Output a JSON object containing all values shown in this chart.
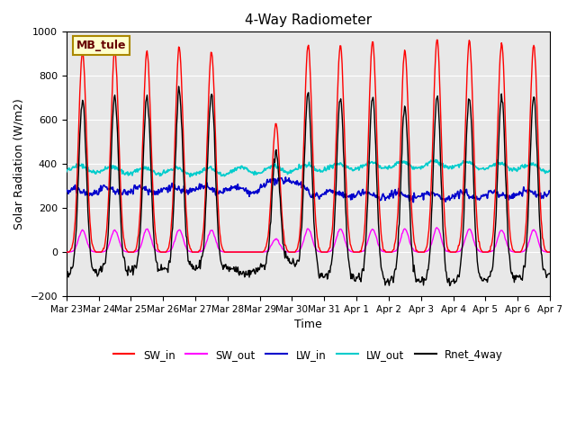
{
  "title": "4-Way Radiometer",
  "ylabel": "Solar Radiation (W/m2)",
  "xlabel": "Time",
  "station_label": "MB_tule",
  "ylim": [
    -200,
    1000
  ],
  "yticks": [
    -200,
    0,
    200,
    400,
    600,
    800,
    1000
  ],
  "x_tick_labels": [
    "Mar 23",
    "Mar 24",
    "Mar 25",
    "Mar 26",
    "Mar 27",
    "Mar 28",
    "Mar 29",
    "Mar 30",
    "Mar 31",
    "Apr 1",
    "Apr 2",
    "Apr 3",
    "Apr 4",
    "Apr 5",
    "Apr 6",
    "Apr 7"
  ],
  "colors": {
    "SW_in": "#ff0000",
    "SW_out": "#ff00ff",
    "LW_in": "#0000cc",
    "LW_out": "#00cccc",
    "Rnet_4way": "#000000"
  },
  "bg_color": "#e8e8e8",
  "legend_labels": [
    "SW_in",
    "SW_out",
    "LW_in",
    "LW_out",
    "Rnet_4way"
  ]
}
